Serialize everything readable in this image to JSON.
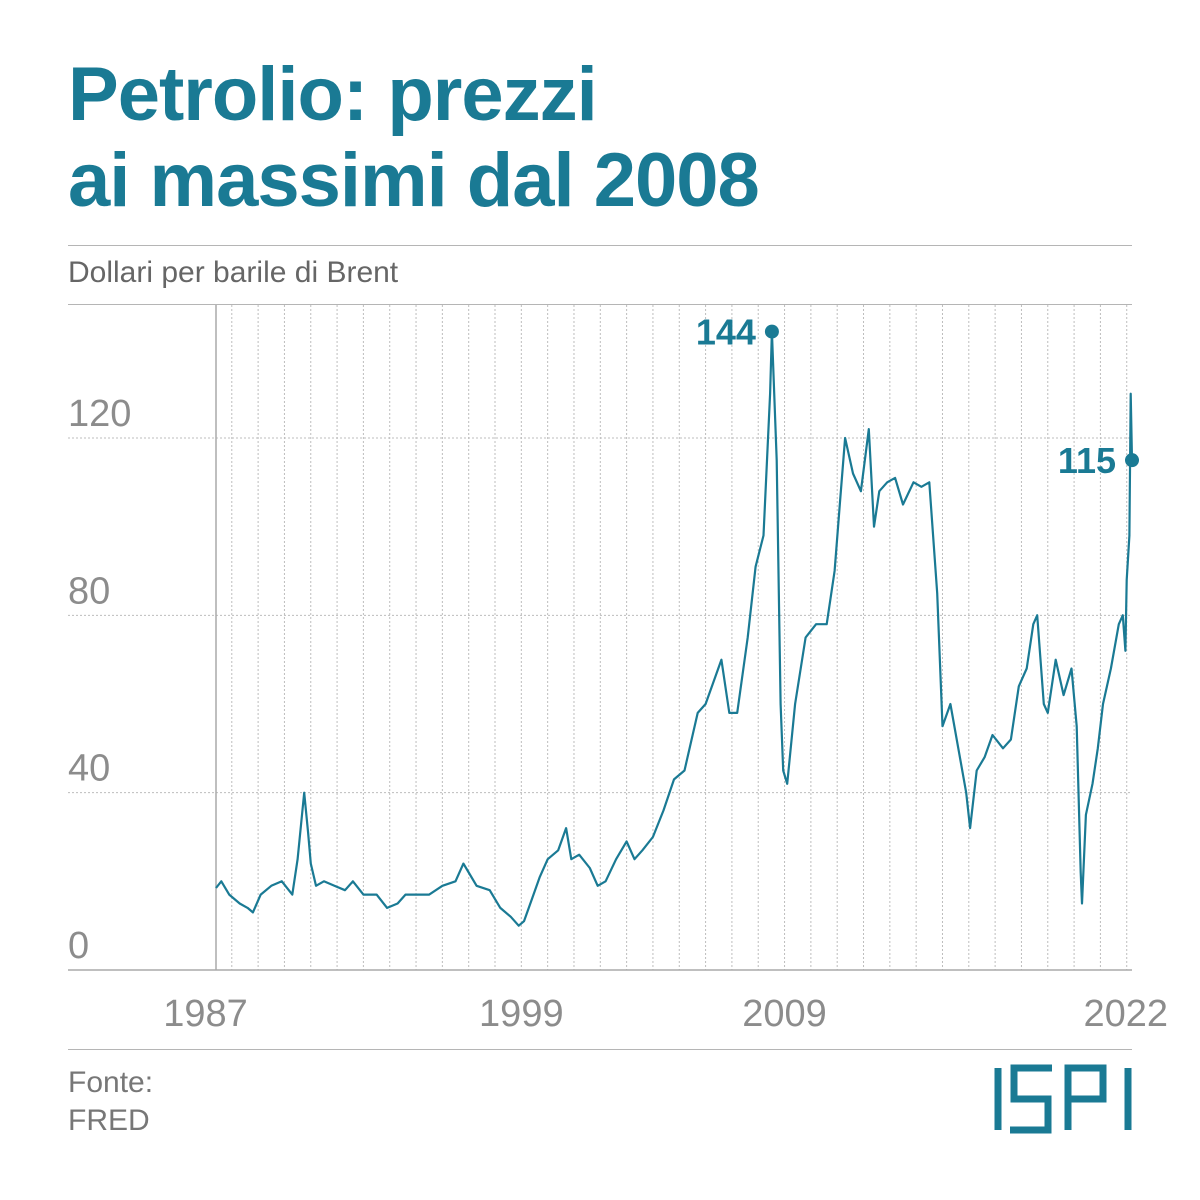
{
  "header": {
    "title_line1": "Petrolio: prezzi",
    "title_line2": "ai massimi dal 2008",
    "subtitle": "Dollari per barile di Brent"
  },
  "footer": {
    "source_label": "Fonte:",
    "source_name": "FRED",
    "logo_text": "ISPI"
  },
  "colors": {
    "accent": "#1a7a94",
    "axis_text": "#8c8c8c",
    "grid": "#bdbdbd"
  },
  "chart_data": {
    "type": "line",
    "title": "Petrolio: prezzi ai massimi dal 2008",
    "xlabel": "",
    "ylabel": "Dollari per barile di Brent",
    "xlim": [
      1987.4,
      2022.2
    ],
    "ylim": [
      0,
      150
    ],
    "yticks": [
      0,
      40,
      80,
      120
    ],
    "xtick_labels": [
      "1987",
      "1999",
      "2009",
      "2022"
    ],
    "grid": "vertical gridlines (years) and horizontal gridlines at y ticks",
    "series": [
      {
        "color": "#1a7a94",
        "x": [
          1987.4,
          1987.6,
          1987.9,
          1988.3,
          1988.6,
          1988.8,
          1989.1,
          1989.5,
          1989.9,
          1990.3,
          1990.5,
          1990.75,
          1990.9,
          1991.0,
          1991.2,
          1991.5,
          1991.9,
          1992.3,
          1992.6,
          1993.0,
          1993.5,
          1993.9,
          1994.3,
          1994.6,
          1995.0,
          1995.5,
          1996.0,
          1996.5,
          1996.8,
          1997.0,
          1997.3,
          1997.8,
          1998.2,
          1998.6,
          1998.9,
          1999.1,
          1999.4,
          1999.7,
          2000.0,
          2000.4,
          2000.7,
          2000.9,
          2001.2,
          2001.6,
          2001.9,
          2002.2,
          2002.6,
          2003.0,
          2003.3,
          2003.6,
          2004.0,
          2004.4,
          2004.8,
          2005.2,
          2005.7,
          2006.0,
          2006.6,
          2006.9,
          2007.2,
          2007.6,
          2007.9,
          2008.2,
          2008.45,
          2008.52,
          2008.7,
          2008.85,
          2008.95,
          2009.1,
          2009.4,
          2009.8,
          2010.2,
          2010.6,
          2010.9,
          2011.1,
          2011.3,
          2011.6,
          2011.9,
          2012.2,
          2012.4,
          2012.6,
          2012.9,
          2013.2,
          2013.5,
          2013.9,
          2014.2,
          2014.5,
          2014.8,
          2015.0,
          2015.3,
          2015.6,
          2015.9,
          2016.05,
          2016.3,
          2016.6,
          2016.9,
          2017.3,
          2017.6,
          2017.9,
          2018.2,
          2018.45,
          2018.6,
          2018.85,
          2019.0,
          2019.3,
          2019.6,
          2019.9,
          2020.1,
          2020.25,
          2020.3,
          2020.45,
          2020.7,
          2020.9,
          2021.1,
          2021.4,
          2021.7,
          2021.85,
          2021.95,
          2022.0,
          2022.1,
          2022.15,
          2022.2
        ],
        "y": [
          18.5,
          20,
          17,
          15,
          14,
          13,
          17,
          19,
          20,
          17,
          25,
          40,
          31,
          24,
          19,
          20,
          19,
          18,
          20,
          17,
          17,
          14,
          15,
          17,
          17,
          17,
          19,
          20,
          24,
          22,
          19,
          18,
          14,
          12,
          10,
          11,
          16,
          21,
          25,
          27,
          32,
          25,
          26,
          23,
          19,
          20,
          25,
          29,
          25,
          27,
          30,
          36,
          43,
          45,
          58,
          60,
          70,
          58,
          58,
          75,
          91,
          98,
          130,
          144,
          115,
          60,
          45,
          42,
          60,
          75,
          78,
          78,
          90,
          105,
          120,
          112,
          108,
          122,
          100,
          108,
          110,
          111,
          105,
          110,
          109,
          110,
          85,
          55,
          60,
          50,
          40,
          32,
          45,
          48,
          53,
          50,
          52,
          64,
          68,
          78,
          80,
          60,
          58,
          70,
          62,
          68,
          55,
          22,
          15,
          35,
          42,
          50,
          60,
          68,
          78,
          80,
          72,
          88,
          98,
          130,
          115
        ]
      }
    ],
    "annotations": [
      {
        "x": 2008.52,
        "y": 144,
        "label": "144"
      },
      {
        "x": 2022.2,
        "y": 115,
        "label": "115"
      }
    ]
  }
}
